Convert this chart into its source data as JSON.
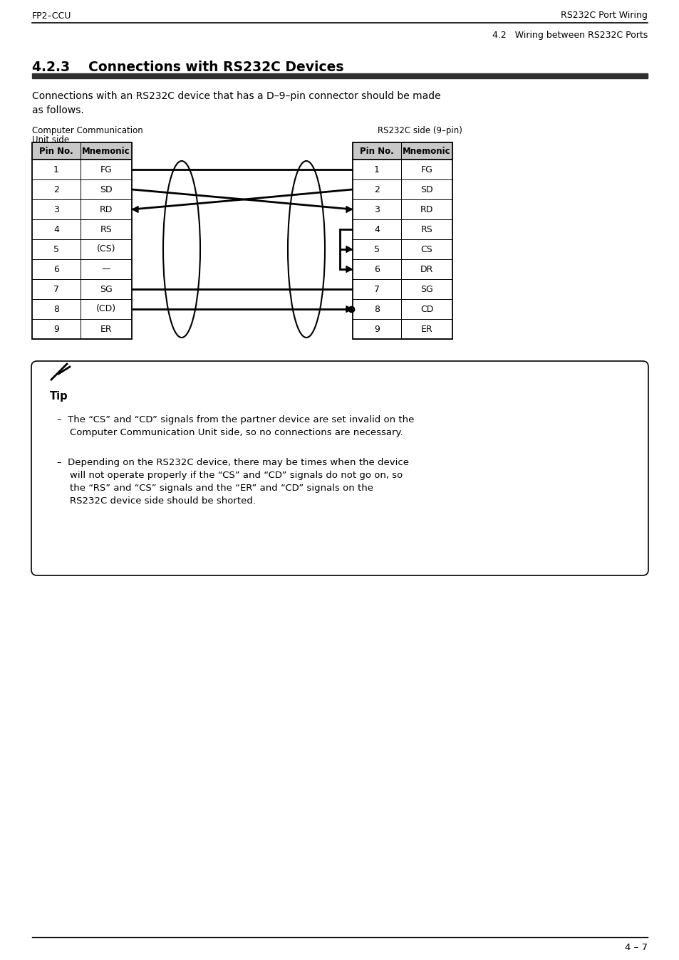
{
  "header_left": "FP2–CCU",
  "header_right": "RS232C Port Wiring",
  "subheader_right": "4.2   Wiring between RS232C Ports",
  "section_title": "4.2.3    Connections with RS232C Devices",
  "intro_text": "Connections with an RS232C device that has a D–9–pin connector should be made as follows.",
  "left_table_title1": "Computer Communication",
  "left_table_title2": "Unit side",
  "right_table_title": "RS232C side (9–pin)",
  "left_pins": [
    "1",
    "2",
    "3",
    "4",
    "5",
    "6",
    "7",
    "8",
    "9"
  ],
  "left_mnemonics": [
    "FG",
    "SD",
    "RD",
    "RS",
    "(CS)",
    "—",
    "SG",
    "(CD)",
    "ER"
  ],
  "right_pins": [
    "1",
    "2",
    "3",
    "4",
    "5",
    "6",
    "7",
    "8",
    "9"
  ],
  "right_mnemonics": [
    "FG",
    "SD",
    "RD",
    "RS",
    "CS",
    "DR",
    "SG",
    "CD",
    "ER"
  ],
  "tip_title": "Tip",
  "tip_bullet1": "The “CS” and “CD” signals from the partner device are set invalid on the\nComputer Communication Unit side, so no connections are necessary.",
  "tip_bullet2": "Depending on the RS232C device, there may be times when the device\nwill not operate properly if the “CS” and “CD” signals do not go on, so\nthe “RS” and “CS” signals and the “ER” and “CD” signals on the\nRS232C device side should be shorted.",
  "footer_text": "4 – 7",
  "bg_color": "#ffffff",
  "text_color": "#000000",
  "table_header_bg": "#c8c8c8",
  "dark_bar_color": "#303030"
}
